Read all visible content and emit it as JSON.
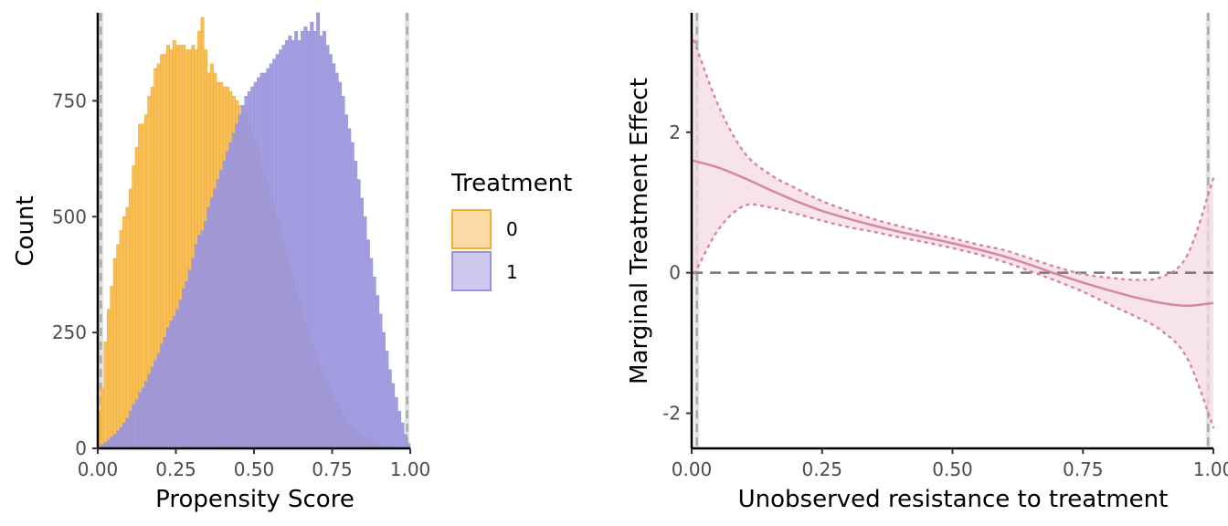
{
  "chart_data": [
    {
      "type": "histogram",
      "xlabel": "Propensity Score",
      "ylabel": "Count",
      "xlim": [
        0,
        1
      ],
      "ylim": [
        0,
        940
      ],
      "x_ticks": [
        0,
        0.25,
        0.5,
        0.75,
        1
      ],
      "x_tick_labels": [
        "0.00",
        "0.25",
        "0.50",
        "0.75",
        "1.00"
      ],
      "y_ticks": [
        0,
        250,
        500,
        750
      ],
      "y_tick_labels": [
        "0",
        "250",
        "500",
        "750"
      ],
      "reference_lines_x": [
        0.01,
        0.99
      ],
      "grid": false,
      "legend": {
        "title": "Treatment",
        "position": "right",
        "entries": [
          {
            "label": "0",
            "fill": "#f7b84b",
            "fill_alpha": 0.45,
            "stroke": "#f0b030"
          },
          {
            "label": "1",
            "fill": "#9b96dc",
            "fill_alpha": 0.5,
            "stroke": "#9a94e0"
          }
        ]
      },
      "bins": 100,
      "series": [
        {
          "name": "0",
          "color": "#f7b84b",
          "stroke": "#f0b030",
          "values": [
            80,
            130,
            230,
            300,
            350,
            410,
            440,
            470,
            500,
            520,
            560,
            610,
            650,
            700,
            700,
            720,
            760,
            780,
            820,
            830,
            850,
            850,
            870,
            860,
            880,
            870,
            870,
            870,
            860,
            860,
            870,
            860,
            900,
            930,
            860,
            810,
            830,
            810,
            790,
            790,
            780,
            780,
            770,
            760,
            750,
            740,
            720,
            720,
            700,
            680,
            660,
            640,
            610,
            590,
            570,
            545,
            520,
            500,
            470,
            445,
            420,
            390,
            370,
            345,
            320,
            295,
            270,
            250,
            230,
            210,
            190,
            170,
            155,
            140,
            125,
            110,
            95,
            85,
            75,
            65,
            55,
            48,
            40,
            35,
            30,
            25,
            20,
            16,
            13,
            10,
            8,
            6,
            5,
            4,
            3,
            2,
            2,
            1,
            1,
            0
          ]
        },
        {
          "name": "1",
          "color": "#9b96dc",
          "stroke": "#9a94e0",
          "values": [
            5,
            8,
            12,
            18,
            24,
            30,
            38,
            45,
            55,
            65,
            80,
            95,
            105,
            120,
            130,
            145,
            160,
            175,
            190,
            205,
            225,
            240,
            260,
            275,
            285,
            300,
            320,
            345,
            360,
            385,
            410,
            440,
            460,
            470,
            490,
            520,
            540,
            560,
            580,
            600,
            620,
            640,
            660,
            680,
            700,
            720,
            740,
            760,
            770,
            780,
            790,
            800,
            810,
            810,
            820,
            830,
            840,
            850,
            860,
            870,
            880,
            890,
            880,
            900,
            880,
            900,
            910,
            900,
            920,
            900,
            940,
            890,
            900,
            870,
            850,
            830,
            810,
            790,
            760,
            720,
            690,
            660,
            620,
            580,
            540,
            500,
            450,
            410,
            370,
            330,
            290,
            250,
            210,
            170,
            140,
            110,
            80,
            55,
            30,
            10
          ]
        }
      ]
    },
    {
      "type": "line",
      "xlabel": "Unobserved resistance to treatment",
      "ylabel": "Marginal Treatment Effect",
      "xlim": [
        0,
        1
      ],
      "ylim": [
        -2.5,
        3.7
      ],
      "x_ticks": [
        0,
        0.25,
        0.5,
        0.75,
        1
      ],
      "x_tick_labels": [
        "0.00",
        "0.25",
        "0.50",
        "0.75",
        "1.00"
      ],
      "y_ticks": [
        -2,
        0,
        2
      ],
      "y_tick_labels": [
        "-2",
        "0",
        "2"
      ],
      "hline": 0,
      "reference_lines_x": [
        0.01,
        0.99
      ],
      "grid": false,
      "color": "#d9879f",
      "band_fill": "#f3dbe2",
      "x": [
        0.0,
        0.05,
        0.1,
        0.15,
        0.2,
        0.25,
        0.3,
        0.35,
        0.4,
        0.45,
        0.5,
        0.55,
        0.6,
        0.65,
        0.7,
        0.75,
        0.8,
        0.85,
        0.9,
        0.95,
        1.0
      ],
      "series": [
        {
          "name": "estimate",
          "values": [
            1.6,
            1.5,
            1.35,
            1.18,
            1.02,
            0.88,
            0.77,
            0.67,
            0.58,
            0.5,
            0.42,
            0.33,
            0.23,
            0.11,
            -0.02,
            -0.14,
            -0.25,
            -0.35,
            -0.43,
            -0.47,
            -0.43
          ]
        },
        {
          "name": "upper",
          "values": [
            3.4,
            2.4,
            1.72,
            1.4,
            1.2,
            1.02,
            0.88,
            0.76,
            0.66,
            0.57,
            0.49,
            0.4,
            0.32,
            0.2,
            0.08,
            -0.02,
            -0.07,
            -0.1,
            -0.06,
            0.25,
            1.35
          ]
        },
        {
          "name": "lower",
          "values": [
            -0.1,
            0.6,
            0.95,
            0.93,
            0.84,
            0.74,
            0.65,
            0.58,
            0.5,
            0.43,
            0.35,
            0.26,
            0.15,
            0.02,
            -0.12,
            -0.27,
            -0.45,
            -0.62,
            -0.82,
            -1.22,
            -2.2
          ]
        }
      ]
    }
  ]
}
